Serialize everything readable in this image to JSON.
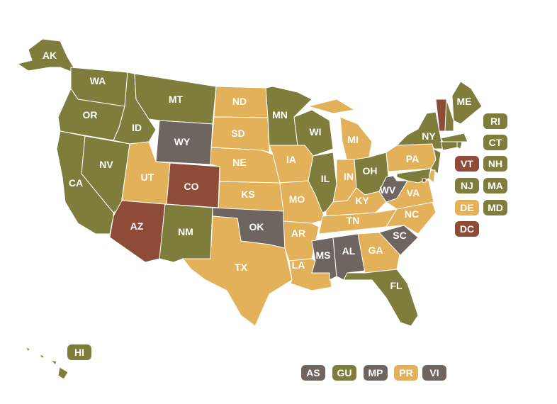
{
  "states": [
    {
      "label": "AK",
      "color": "#7e7d3c"
    },
    {
      "label": "WA",
      "color": "#7e7d3c"
    },
    {
      "label": "OR",
      "color": "#7e7d3c"
    },
    {
      "label": "CA",
      "color": "#7e7d3c"
    },
    {
      "label": "NV",
      "color": "#7e7d3c"
    },
    {
      "label": "ID",
      "color": "#7e7d3c"
    },
    {
      "label": "MT",
      "color": "#7e7d3c"
    },
    {
      "label": "WY",
      "color": "#6e6560"
    },
    {
      "label": "UT",
      "color": "#e3b15a"
    },
    {
      "label": "CO",
      "color": "#8e4c38"
    },
    {
      "label": "AZ",
      "color": "#8e4c38"
    },
    {
      "label": "NM",
      "color": "#7e7d3c"
    },
    {
      "label": "ND",
      "color": "#e3b15a"
    },
    {
      "label": "SD",
      "color": "#e3b15a"
    },
    {
      "label": "NE",
      "color": "#e3b15a"
    },
    {
      "label": "KS",
      "color": "#e3b15a"
    },
    {
      "label": "OK",
      "color": "#6e6560"
    },
    {
      "label": "TX",
      "color": "#e3b15a"
    },
    {
      "label": "MN",
      "color": "#7e7d3c"
    },
    {
      "label": "IA",
      "color": "#e3b15a"
    },
    {
      "label": "MO",
      "color": "#e3b15a"
    },
    {
      "label": "AR",
      "color": "#e3b15a"
    },
    {
      "label": "LA",
      "color": "#e3b15a"
    },
    {
      "label": "WI",
      "color": "#7e7d3c"
    },
    {
      "label": "IL",
      "color": "#7e7d3c"
    },
    {
      "label": "MI",
      "color": "#e3b15a"
    },
    {
      "label": "IN",
      "color": "#e3b15a"
    },
    {
      "label": "OH",
      "color": "#7e7d3c"
    },
    {
      "label": "KY",
      "color": "#e3b15a"
    },
    {
      "label": "TN",
      "color": "#e3b15a"
    },
    {
      "label": "MS",
      "color": "#6e6560"
    },
    {
      "label": "AL",
      "color": "#6e6560"
    },
    {
      "label": "GA",
      "color": "#e3b15a"
    },
    {
      "label": "FL",
      "color": "#7e7d3c"
    },
    {
      "label": "SC",
      "color": "#6e6560"
    },
    {
      "label": "NC",
      "color": "#e3b15a"
    },
    {
      "label": "VA",
      "color": "#e3b15a"
    },
    {
      "label": "WV",
      "color": "#6e6560"
    },
    {
      "label": "PA",
      "color": "#e3b15a"
    },
    {
      "label": "NY",
      "color": "#7e7d3c"
    },
    {
      "label": "ME",
      "color": "#7e7d3c"
    }
  ],
  "badges": [
    {
      "label": "RI",
      "color": "#7e7d3c"
    },
    {
      "label": "CT",
      "color": "#7e7d3c"
    },
    {
      "label": "VT",
      "color": "#8e4c38"
    },
    {
      "label": "NH",
      "color": "#7e7d3c"
    },
    {
      "label": "NJ",
      "color": "#7e7d3c"
    },
    {
      "label": "MA",
      "color": "#7e7d3c"
    },
    {
      "label": "DE",
      "color": "#e3b15a"
    },
    {
      "label": "MD",
      "color": "#7e7d3c"
    },
    {
      "label": "DC",
      "color": "#8e4c38"
    },
    {
      "label": "HI",
      "color": "#7e7d3c"
    }
  ],
  "territories": [
    {
      "label": "AS",
      "color": "#6e6560"
    },
    {
      "label": "GU",
      "color": "#7e7d3c"
    },
    {
      "label": "MP",
      "color": "#6e6560"
    },
    {
      "label": "PR",
      "color": "#e3b15a"
    },
    {
      "label": "VI",
      "color": "#6e6560"
    }
  ]
}
